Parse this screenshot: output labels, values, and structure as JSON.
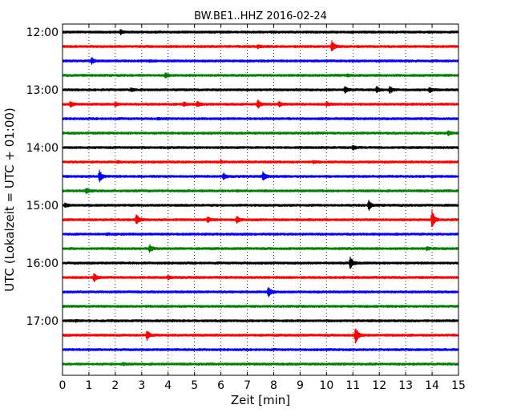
{
  "chart_data": {
    "type": "line",
    "title": "BW.BE1..HHZ 2016-02-24",
    "xlabel": "Zeit  [min]",
    "ylabel": "UTC (Lokalzeit = UTC + 01:00)",
    "xlim": [
      0,
      15
    ],
    "xticks": [
      0,
      1,
      2,
      3,
      4,
      5,
      6,
      7,
      8,
      9,
      10,
      11,
      12,
      13,
      14,
      15
    ],
    "ytick_labels": [
      "12:00",
      "13:00",
      "14:00",
      "15:00",
      "16:00",
      "17:00"
    ],
    "ytick_rows": [
      0,
      4,
      8,
      12,
      16,
      20
    ],
    "grid": "vertical dotted at each minute",
    "trace_colors": [
      "#000000",
      "#ff0000",
      "#0000ff",
      "#008000"
    ],
    "trace_interval_minutes": 15,
    "traces": [
      {
        "start": "12:00",
        "events": [
          {
            "t": 2.2,
            "amp": 0.35
          }
        ]
      },
      {
        "start": "12:15",
        "events": [
          {
            "t": 7.4,
            "amp": 0.25
          },
          {
            "t": 10.2,
            "amp": 0.9
          }
        ]
      },
      {
        "start": "12:30",
        "events": [
          {
            "t": 1.1,
            "amp": 0.5
          },
          {
            "t": 3.3,
            "amp": 0.15
          }
        ]
      },
      {
        "start": "12:45",
        "events": [
          {
            "t": 3.9,
            "amp": 0.45
          },
          {
            "t": 10.8,
            "amp": 0.15
          }
        ]
      },
      {
        "start": "13:00",
        "events": [
          {
            "t": 2.6,
            "amp": 0.25
          },
          {
            "t": 10.7,
            "amp": 0.6
          },
          {
            "t": 11.9,
            "amp": 0.45
          },
          {
            "t": 12.4,
            "amp": 0.55
          },
          {
            "t": 13.9,
            "amp": 0.4
          }
        ]
      },
      {
        "start": "13:15",
        "events": [
          {
            "t": 0.3,
            "amp": 0.45
          },
          {
            "t": 2.0,
            "amp": 0.35
          },
          {
            "t": 4.6,
            "amp": 0.35
          },
          {
            "t": 5.1,
            "amp": 0.45
          },
          {
            "t": 7.4,
            "amp": 0.7
          },
          {
            "t": 8.2,
            "amp": 0.4
          },
          {
            "t": 10.0,
            "amp": 0.35
          }
        ]
      },
      {
        "start": "13:30",
        "events": [
          {
            "t": 3.6,
            "amp": 0.12
          }
        ]
      },
      {
        "start": "13:45",
        "events": [
          {
            "t": 14.6,
            "amp": 0.35
          }
        ]
      },
      {
        "start": "14:00",
        "events": [
          {
            "t": 11.0,
            "amp": 0.35
          }
        ]
      },
      {
        "start": "14:15",
        "events": [
          {
            "t": 2.1,
            "amp": 0.15
          },
          {
            "t": 6.0,
            "amp": 0.15
          },
          {
            "t": 9.5,
            "amp": 0.15
          }
        ]
      },
      {
        "start": "14:30",
        "events": [
          {
            "t": 1.4,
            "amp": 1.0
          },
          {
            "t": 6.1,
            "amp": 0.45
          },
          {
            "t": 7.6,
            "amp": 0.8
          }
        ]
      },
      {
        "start": "14:45",
        "events": [
          {
            "t": 0.9,
            "amp": 0.45
          }
        ]
      },
      {
        "start": "15:00",
        "events": [
          {
            "t": 0.1,
            "amp": 0.35
          },
          {
            "t": 11.6,
            "amp": 0.75
          }
        ]
      },
      {
        "start": "15:15",
        "events": [
          {
            "t": 2.8,
            "amp": 0.9
          },
          {
            "t": 5.5,
            "amp": 0.45
          },
          {
            "t": 6.6,
            "amp": 0.55
          },
          {
            "t": 14.0,
            "amp": 1.6
          }
        ]
      },
      {
        "start": "15:30",
        "events": [
          {
            "t": 1.7,
            "amp": 0.12
          }
        ]
      },
      {
        "start": "15:45",
        "events": [
          {
            "t": 3.3,
            "amp": 0.6
          },
          {
            "t": 13.8,
            "amp": 0.25
          }
        ]
      },
      {
        "start": "16:00",
        "events": [
          {
            "t": 10.9,
            "amp": 1.0
          }
        ]
      },
      {
        "start": "16:15",
        "events": [
          {
            "t": 1.2,
            "amp": 0.75
          },
          {
            "t": 4.0,
            "amp": 0.25
          }
        ]
      },
      {
        "start": "16:30",
        "events": [
          {
            "t": 7.8,
            "amp": 0.9
          }
        ]
      },
      {
        "start": "16:45",
        "events": []
      },
      {
        "start": "17:00",
        "events": [
          {
            "t": 0.5,
            "amp": 0.12
          }
        ]
      },
      {
        "start": "17:15",
        "events": [
          {
            "t": 3.2,
            "amp": 0.75
          },
          {
            "t": 11.1,
            "amp": 1.5
          }
        ]
      },
      {
        "start": "17:30",
        "events": []
      },
      {
        "start": "17:45",
        "events": [
          {
            "t": 2.3,
            "amp": 0.15
          }
        ]
      }
    ]
  }
}
